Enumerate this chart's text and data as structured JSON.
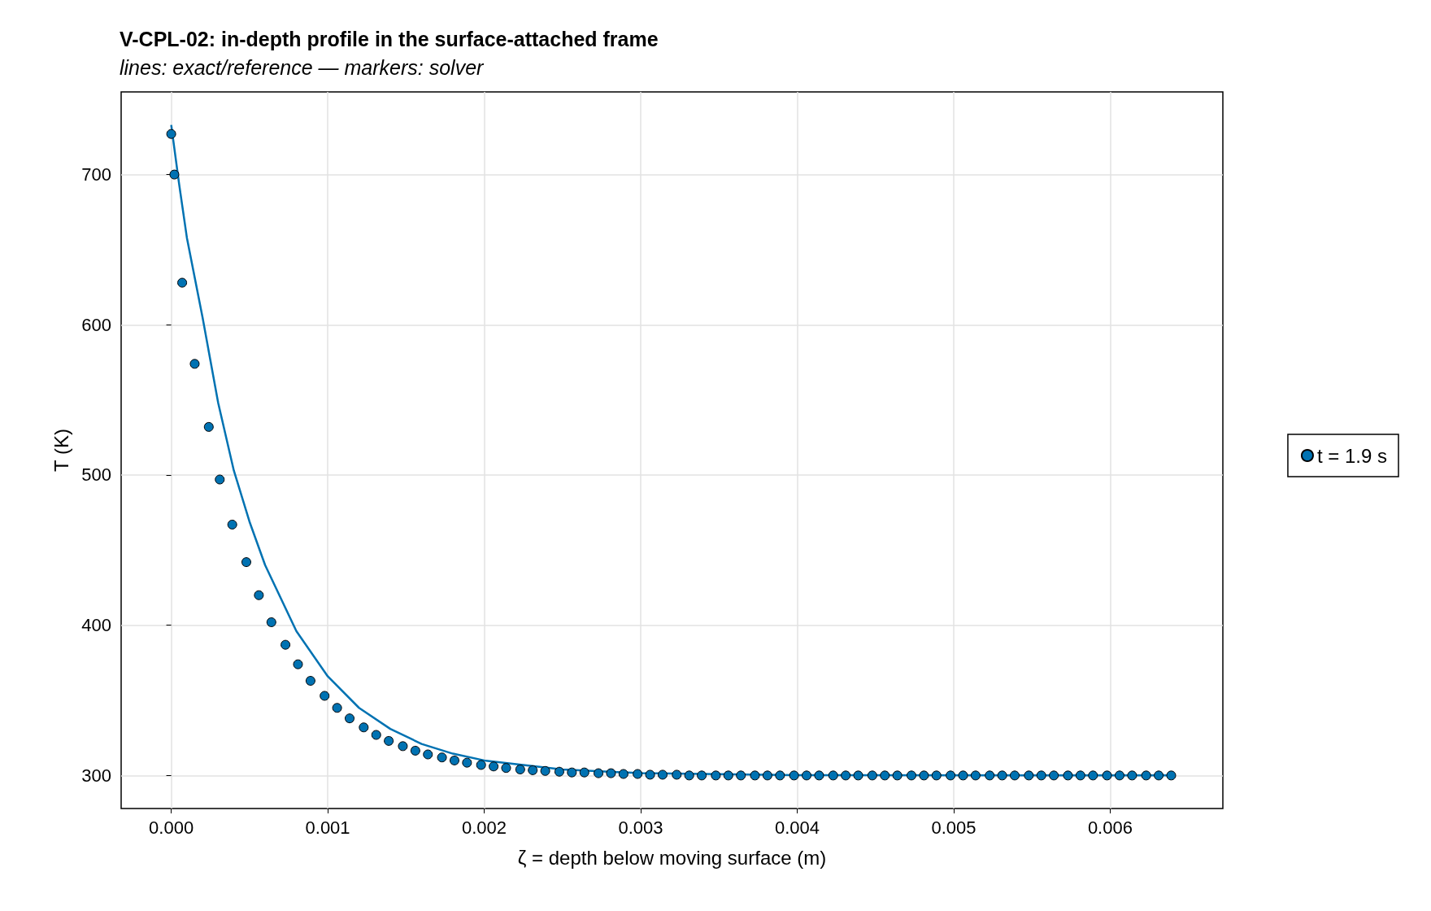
{
  "chart_data": {
    "type": "line",
    "title": "V-CPL-02: in-depth profile in the surface-attached frame",
    "subtitle": "lines: exact/reference — markers: solver",
    "xlabel": "ζ = depth below moving surface (m)",
    "ylabel": "T (K)",
    "xlim": [
      -0.00032,
      0.00672
    ],
    "ylim": [
      278,
      755
    ],
    "xticks": [
      {
        "value": 0,
        "label": "0.000"
      },
      {
        "value": 0.001,
        "label": "0.001"
      },
      {
        "value": 0.002,
        "label": "0.002"
      },
      {
        "value": 0.003,
        "label": "0.003"
      },
      {
        "value": 0.004,
        "label": "0.004"
      },
      {
        "value": 0.005,
        "label": "0.005"
      },
      {
        "value": 0.006,
        "label": "0.006"
      }
    ],
    "yticks": [
      300,
      400,
      500,
      600,
      700
    ],
    "grid": true,
    "legend": "right",
    "line_style": "solid",
    "series": [
      {
        "marker": "none",
        "color": "#0072b2",
        "x": [
          0,
          5e-05,
          0.0001,
          0.0002,
          0.0003,
          0.0004,
          0.0005,
          0.0006,
          0.0008,
          0.001,
          0.0012,
          0.0014,
          0.0016,
          0.0018,
          0.002,
          0.0025,
          0.003,
          0.004,
          0.0064
        ],
        "values": [
          733,
          694,
          658,
          605,
          548,
          503,
          469,
          440,
          396,
          366,
          345,
          331,
          321,
          314.5,
          310,
          304,
          301.5,
          300.2,
          300
        ]
      },
      {
        "type": "scatter",
        "marker": "circle",
        "name": "t = 1.9 s",
        "color": "#0072b2",
        "x": [
          0,
          2e-05,
          7e-05,
          0.00015,
          0.00024,
          0.00031,
          0.00039,
          0.00048,
          0.00056,
          0.00064,
          0.00073,
          0.00081,
          0.00089,
          0.00098,
          0.00106,
          0.00114,
          0.00123,
          0.00131,
          0.00139,
          0.00148,
          0.00156,
          0.00164,
          0.00173,
          0.00181,
          0.00189,
          0.00198,
          0.00206,
          0.00214,
          0.00223,
          0.00231,
          0.00239,
          0.00248,
          0.00256,
          0.00264,
          0.00273,
          0.00281,
          0.00289,
          0.00298,
          0.00306,
          0.00314,
          0.00323,
          0.00331,
          0.00339,
          0.00348,
          0.00356,
          0.00364,
          0.00373,
          0.00381,
          0.00389,
          0.00398,
          0.00406,
          0.00414,
          0.00423,
          0.00431,
          0.00439,
          0.00448,
          0.00456,
          0.00464,
          0.00473,
          0.00481,
          0.00489,
          0.00498,
          0.00506,
          0.00514,
          0.00523,
          0.00531,
          0.00539,
          0.00548,
          0.00556,
          0.00564,
          0.00573,
          0.00581,
          0.00589,
          0.00598,
          0.00606,
          0.00614,
          0.00623,
          0.00631,
          0.00639
        ],
        "values": [
          727,
          700,
          628,
          574,
          532,
          497,
          467,
          442,
          420,
          402,
          387,
          374,
          363,
          353,
          345,
          338,
          332,
          327,
          323,
          319.5,
          316.5,
          314,
          312,
          310,
          308.5,
          307,
          306,
          305,
          304,
          303.5,
          303,
          302.5,
          302,
          302,
          301.5,
          301.5,
          301,
          301,
          300.5,
          300.5,
          300.5,
          300,
          300,
          300,
          300,
          300,
          300,
          300,
          300,
          300,
          300,
          300,
          300,
          300,
          300,
          300,
          300,
          300,
          300,
          300,
          300,
          300,
          300,
          300,
          300,
          300,
          300,
          300,
          300,
          300,
          300,
          300,
          300,
          300,
          300,
          300,
          300,
          300,
          300
        ]
      }
    ]
  }
}
